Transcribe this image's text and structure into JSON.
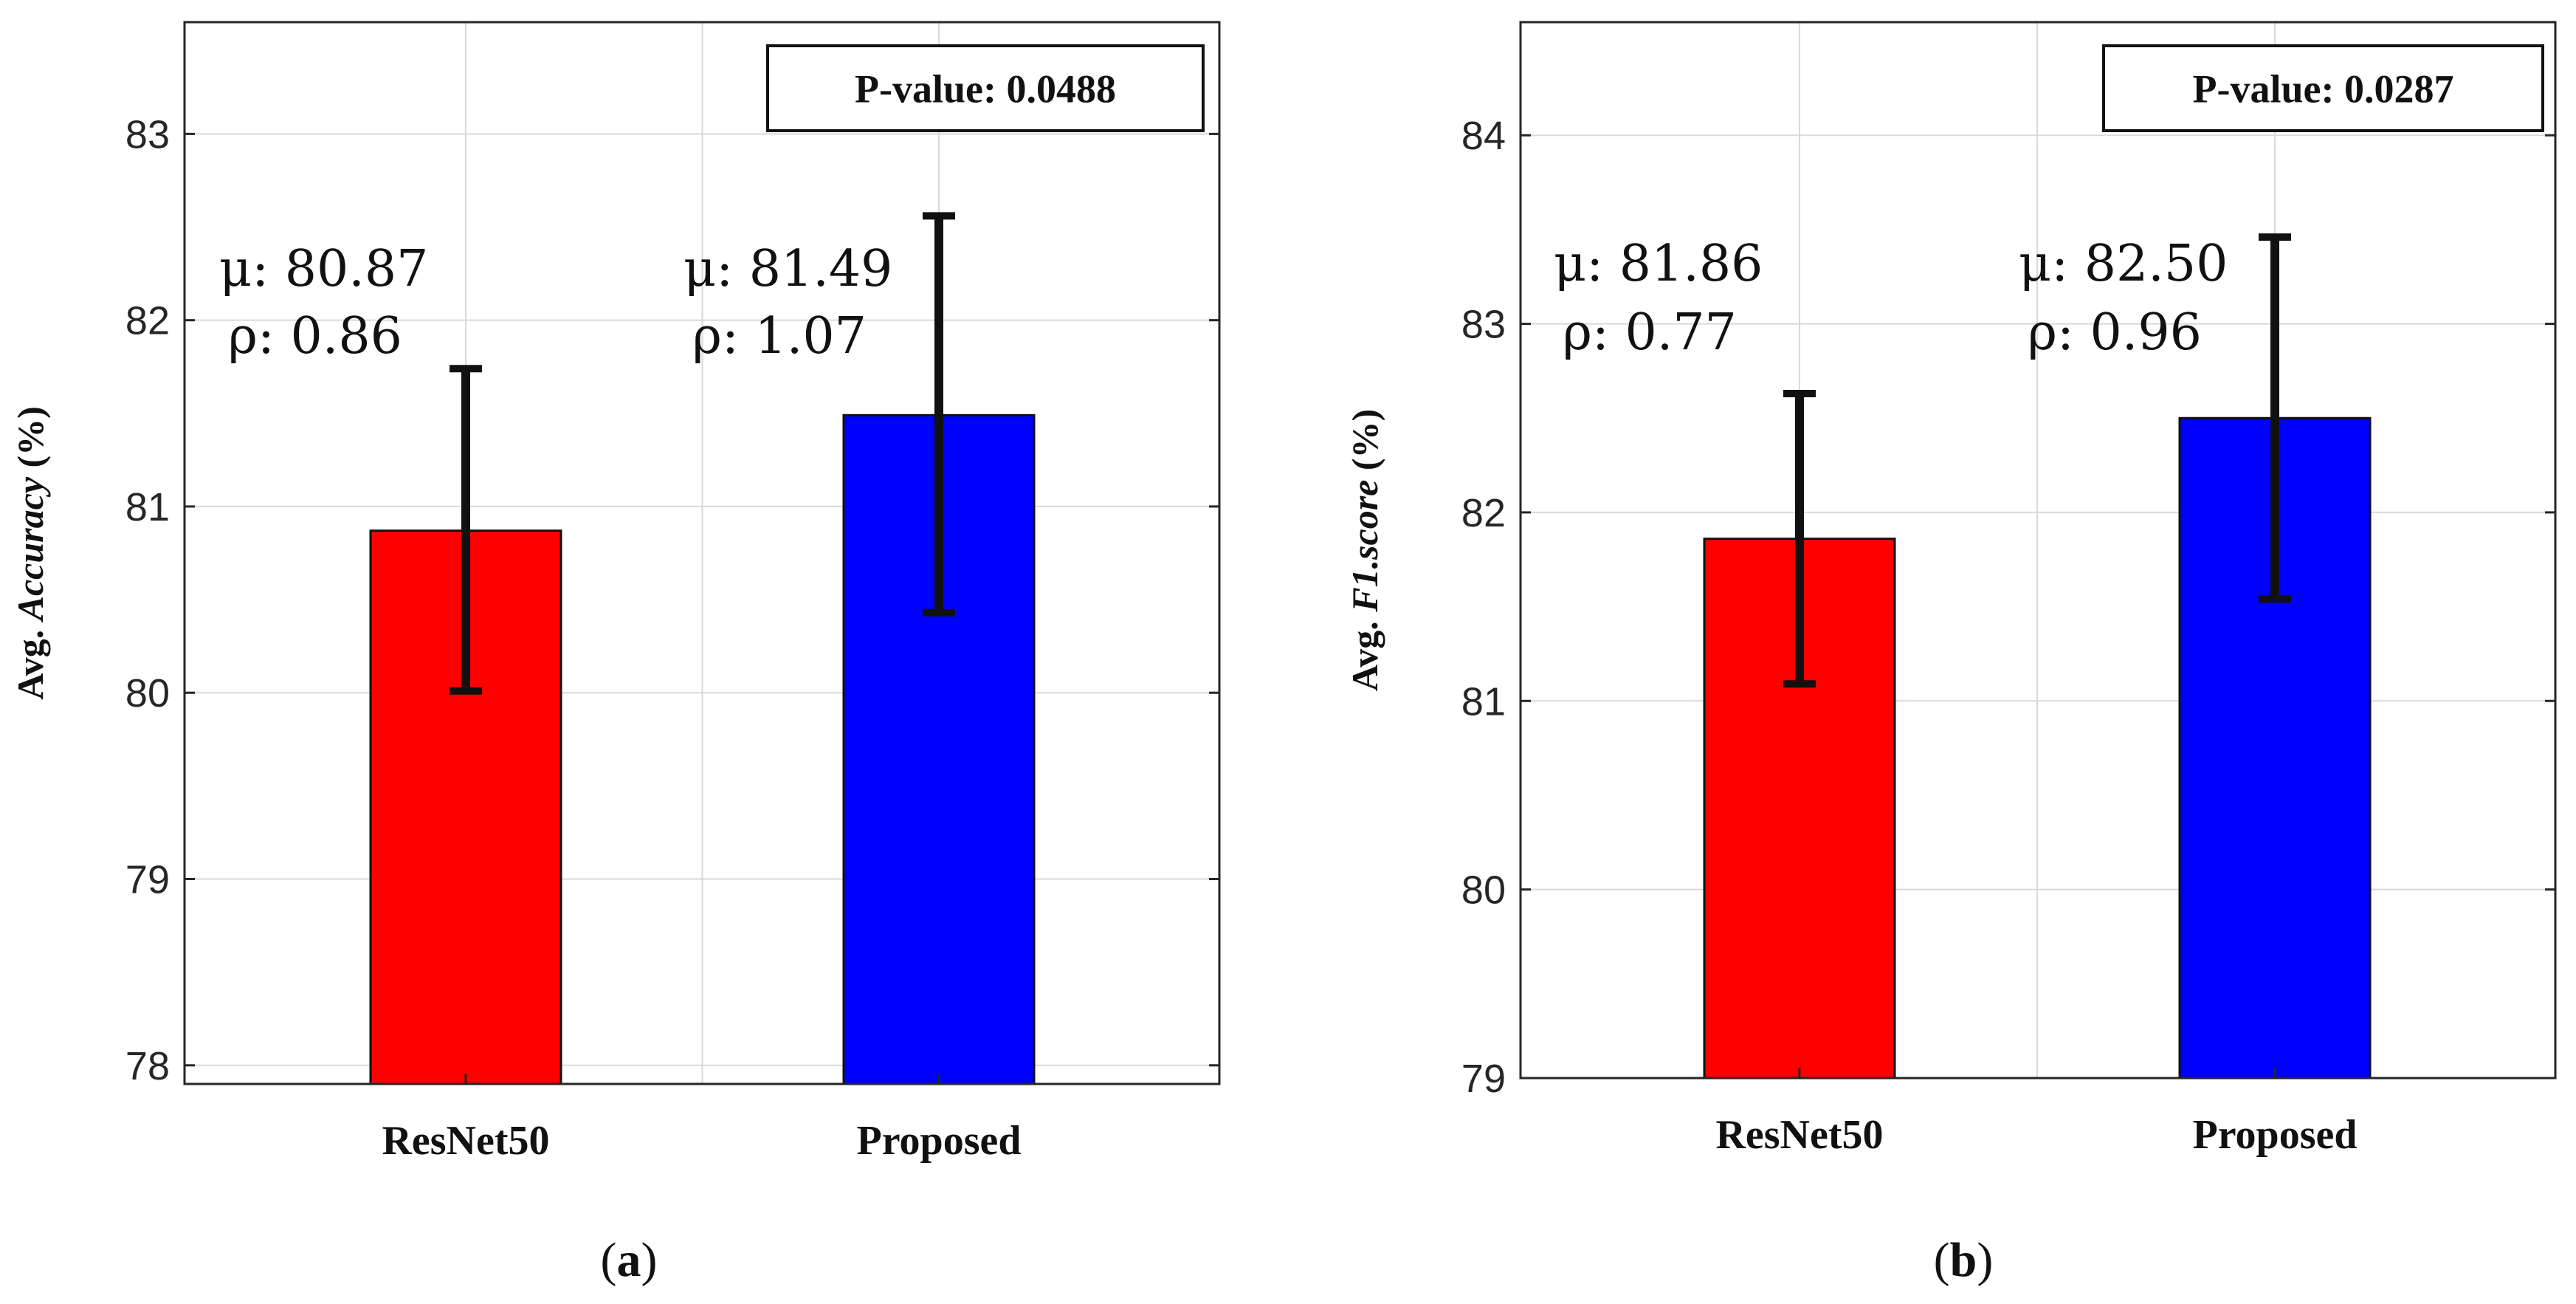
{
  "chart_data": [
    {
      "type": "bar",
      "panel_label": "a",
      "categories": [
        "ResNet50",
        "Proposed"
      ],
      "values": [
        80.87,
        81.49
      ],
      "error_low": [
        80.01,
        80.43
      ],
      "error_high": [
        81.74,
        82.56
      ],
      "colors": [
        "#ff0000",
        "#0000ff"
      ],
      "ylim": [
        77.9,
        83.6
      ],
      "yticks": [
        78,
        79,
        80,
        81,
        82,
        83
      ],
      "ylabel": {
        "prefix": "Avg. ",
        "metric": "Accuracy",
        "suffix": " (%)"
      },
      "xlabel": "",
      "grid": true,
      "pvalue": "P-value: 0.0488",
      "annotations": [
        {
          "mu": "μ: 80.87",
          "rho": "ρ: 0.86"
        },
        {
          "mu": "μ: 81.49",
          "rho": "ρ: 1.07"
        }
      ]
    },
    {
      "type": "bar",
      "panel_label": "b",
      "categories": [
        "ResNet50",
        "Proposed"
      ],
      "values": [
        81.86,
        82.5
      ],
      "error_low": [
        81.09,
        81.54
      ],
      "error_high": [
        82.63,
        83.46
      ],
      "colors": [
        "#ff0000",
        "#0000ff"
      ],
      "ylim": [
        79,
        84.6
      ],
      "yticks": [
        79,
        80,
        81,
        82,
        83,
        84
      ],
      "ylabel": {
        "prefix": "Avg. ",
        "metric": "F1.score",
        "suffix": " (%)"
      },
      "xlabel": "",
      "grid": true,
      "pvalue": "P-value: 0.0287",
      "annotations": [
        {
          "mu": "μ: 81.86",
          "rho": "ρ: 0.77"
        },
        {
          "mu": "μ: 82.50",
          "rho": "ρ: 0.96"
        }
      ]
    }
  ]
}
